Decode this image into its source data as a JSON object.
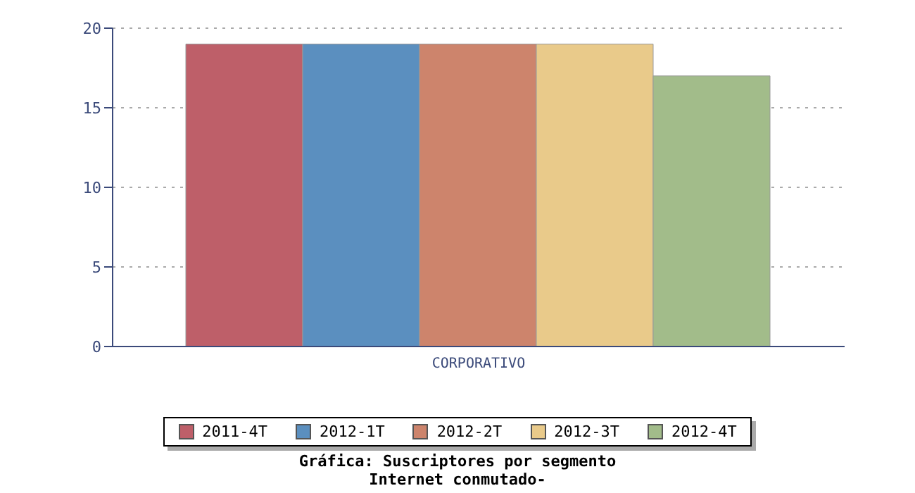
{
  "chart_data": {
    "type": "bar",
    "title": "Gráfica: Suscriptores por segmento",
    "subtitle": "Internet conmutado-",
    "categories": [
      "CORPORATIVO"
    ],
    "series": [
      {
        "name": "2011-4T",
        "color": "#be5f69",
        "values": [
          19
        ]
      },
      {
        "name": "2012-1T",
        "color": "#5b8fbf",
        "values": [
          19
        ]
      },
      {
        "name": "2012-2T",
        "color": "#cd846c",
        "values": [
          19
        ]
      },
      {
        "name": "2012-3T",
        "color": "#e9ca8a",
        "values": [
          19
        ]
      },
      {
        "name": "2012-4T",
        "color": "#a2bc8a",
        "values": [
          17
        ]
      }
    ],
    "ylim": [
      0,
      20
    ],
    "yticks": [
      0,
      5,
      10,
      15,
      20
    ],
    "grid": "y",
    "legend": "bottom"
  }
}
